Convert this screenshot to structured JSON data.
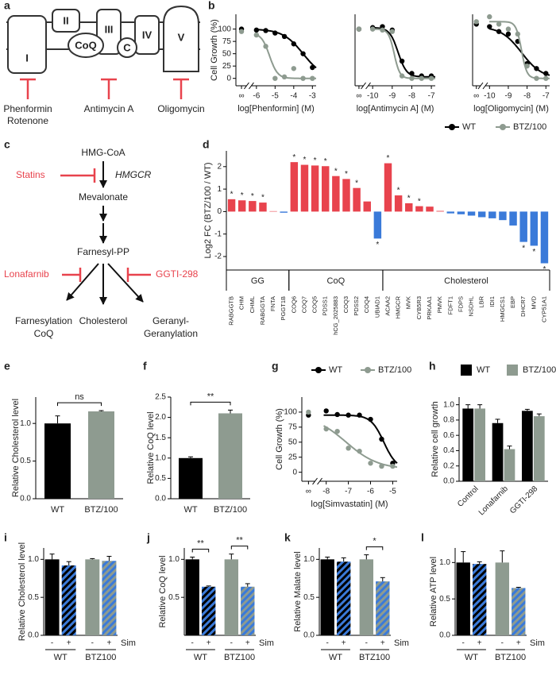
{
  "diagram_a": {
    "panel": "a",
    "complexes": [
      "I",
      "II",
      "CoQ",
      "III",
      "C",
      "IV",
      "V"
    ],
    "inhibitors": [
      {
        "lines": [
          "Phenformin",
          "Rotenone"
        ]
      },
      {
        "lines": [
          "Antimycin A"
        ]
      },
      {
        "lines": [
          "Oligomycin"
        ]
      }
    ]
  },
  "diagram_c": {
    "panel": "c",
    "nodes": [
      "HMG-CoA",
      "Mevalonate",
      "Farnesyl-PP"
    ],
    "enzyme": "HMGCR",
    "inhibitors": [
      "Statins",
      "Lonafarnib",
      "GGTI-298"
    ],
    "products": [
      {
        "lines": [
          "Farnesylation",
          "CoQ"
        ]
      },
      {
        "lines": [
          "Cholesterol"
        ]
      },
      {
        "lines": [
          "Geranyl-",
          "Geranylation"
        ]
      }
    ]
  },
  "chart_data": [
    {
      "type": "dose-response",
      "panel": "b",
      "ylabel": "Cell Growth (%)",
      "xlabel": "log[Phenformin] (M)",
      "xlim": [
        -7.1,
        -2.8
      ],
      "ylim": [
        -15,
        130
      ],
      "xticks": [
        {
          "value": -6.8,
          "label": "∞"
        },
        -6,
        -5,
        -4,
        -3
      ],
      "yticks": [
        0,
        25,
        50,
        75,
        100
      ],
      "series": [
        {
          "color": "#000000",
          "x": [
            -6.8,
            -6,
            -5.5,
            -5,
            -4.5,
            -4,
            -3.5,
            -3
          ],
          "values": [
            100,
            98,
            97,
            92,
            85,
            70,
            50,
            22
          ],
          "fit": {
            "top": 100,
            "bottom": 0,
            "log_ec50": -3.5,
            "hill": 0.8
          }
        },
        {
          "color": "#8e9b90",
          "x": [
            -6.8,
            -6,
            -5.5,
            -5,
            -4.5,
            -4,
            -3.5,
            -3
          ],
          "values": [
            95,
            88,
            65,
            0,
            3,
            20,
            0,
            0
          ],
          "fit": {
            "top": 92,
            "bottom": 0,
            "log_ec50": -5.3,
            "hill": 2
          }
        }
      ]
    },
    {
      "type": "dose-response",
      "xlabel": "log[Antimycin A] (M)",
      "xlim": [
        -10.9,
        -6.8
      ],
      "ylim": [
        -15,
        130
      ],
      "xticks": [
        {
          "value": -10.7,
          "label": "∞"
        },
        -10,
        -9,
        -8,
        -7
      ],
      "series": [
        {
          "color": "#000000",
          "x": [
            -10.7,
            -10,
            -9.5,
            -9,
            -8.5,
            -8,
            -7.5,
            -7
          ],
          "values": [
            100,
            103,
            105,
            98,
            35,
            10,
            5,
            5
          ],
          "fit": {
            "top": 103,
            "bottom": 3,
            "log_ec50": -8.7,
            "hill": 2
          }
        },
        {
          "color": "#8e9b90",
          "x": [
            -10.7,
            -10,
            -9.5,
            -9,
            -8.5,
            -8,
            -7.5,
            -7
          ],
          "values": [
            100,
            100,
            98,
            95,
            5,
            0,
            0,
            0
          ],
          "fit": {
            "top": 100,
            "bottom": 0,
            "log_ec50": -8.9,
            "hill": 3
          }
        }
      ]
    },
    {
      "type": "dose-response",
      "xlabel": "log[Oligomycin] (M)",
      "xlim": [
        -10.9,
        -6.8
      ],
      "ylim": [
        -15,
        130
      ],
      "xticks": [
        {
          "value": -10.7,
          "label": "∞"
        },
        -10,
        -9,
        -8,
        -7
      ],
      "series": [
        {
          "name": "WT",
          "color": "#000000",
          "x": [
            -10.7,
            -10,
            -9.5,
            -9,
            -8.5,
            -8,
            -7.5,
            -7
          ],
          "values": [
            110,
            105,
            95,
            90,
            75,
            30,
            20,
            10
          ],
          "fit": {
            "top": 105,
            "bottom": 0,
            "log_ec50": -8.3,
            "hill": 0.8
          }
        },
        {
          "name": "BTZ/100",
          "color": "#8e9b90",
          "x": [
            -10.7,
            -10,
            -9.5,
            -9,
            -8.5,
            -8,
            -7.5,
            -7
          ],
          "values": [
            115,
            125,
            110,
            100,
            90,
            25,
            0,
            0
          ],
          "fit": {
            "top": 115,
            "bottom": 0,
            "log_ec50": -8.3,
            "hill": 3
          }
        }
      ]
    },
    {
      "type": "bar",
      "panel": "d",
      "ylabel": "Log2 FC (BTZ/100 / WT)",
      "ylim": [
        -2.6,
        2.7
      ],
      "yticks": [
        -2,
        -1,
        0,
        1,
        2
      ],
      "positive_color": "#e8434d",
      "negative_color": "#3a7ad9",
      "groups": [
        {
          "label": "GG",
          "categories": [
            "RABGGTB",
            "CHM",
            "CHML",
            "RABGGTA",
            "FNTA",
            "PGGT1B"
          ],
          "values": [
            0.55,
            0.5,
            0.47,
            0.4,
            0.02,
            -0.05
          ],
          "significance": [
            "*",
            "*",
            "*",
            "*",
            null,
            null
          ]
        },
        {
          "label": "CoQ",
          "categories": [
            "COQ6",
            "COQ7",
            "COQ5",
            "PDSS1",
            "hCG_2025883",
            "COQ3",
            "PDSS2",
            "COQ4",
            "UBIAD1"
          ],
          "values": [
            2.2,
            2.08,
            2.05,
            2.02,
            1.58,
            1.45,
            1.05,
            0.45,
            -1.2
          ],
          "significance": [
            "*",
            "*",
            "*",
            "*",
            "*",
            "*",
            "*",
            null,
            "*"
          ]
        },
        {
          "label": "Cholesterol",
          "categories": [
            "ACAA2",
            "HMGCR",
            "MVK",
            "CYB5R3",
            "PRKAA1",
            "PMVK",
            "FDFT1",
            "FDPS",
            "NSDHL",
            "LBR",
            "IDI1",
            "HMGCS1",
            "EBP",
            "DHCR7",
            "MVD",
            "CYP51A1"
          ],
          "values": [
            2.15,
            0.72,
            0.37,
            0.24,
            0.22,
            0.03,
            -0.08,
            -0.12,
            -0.18,
            -0.25,
            -0.3,
            -0.38,
            -0.62,
            -1.35,
            -1.52,
            -2.3
          ],
          "significance": [
            "*",
            "*",
            "*",
            "*",
            null,
            null,
            null,
            null,
            null,
            null,
            null,
            null,
            null,
            "*",
            "*",
            "*"
          ]
        }
      ]
    },
    {
      "type": "bar",
      "panel": "e",
      "ylabel": "Relative Cholesterol level",
      "ylim": [
        0,
        1.35
      ],
      "yticks": [
        {
          "value": 0,
          "label": "0.0"
        },
        {
          "value": 0.5,
          "label": "0.5"
        },
        {
          "value": 1,
          "label": "1.0"
        }
      ],
      "categories": [
        "WT",
        "BTZ/100"
      ],
      "values": [
        1.0,
        1.16
      ],
      "errors": [
        0.1,
        0.01
      ],
      "colors": [
        "#000000",
        "#8e9b90"
      ],
      "bracket": "ns"
    },
    {
      "type": "bar",
      "panel": "f",
      "ylabel": "Relative CoQ level",
      "ylim": [
        0,
        2.5
      ],
      "yticks": [
        {
          "value": 0,
          "label": "0.0"
        },
        {
          "value": 0.5,
          "label": "0.5"
        },
        {
          "value": 1,
          "label": "1.0"
        },
        {
          "value": 1.5,
          "label": "1.5"
        },
        {
          "value": 2,
          "label": "2.0"
        },
        {
          "value": 2.5,
          "label": "2.5"
        }
      ],
      "categories": [
        "WT",
        "BTZ/100"
      ],
      "values": [
        1.0,
        2.1
      ],
      "errors": [
        0.03,
        0.08
      ],
      "colors": [
        "#000000",
        "#8e9b90"
      ],
      "bracket": "**"
    },
    {
      "type": "dose-response",
      "panel": "g",
      "ylabel": "Cell Growth (%)",
      "xlabel": "log[Simvastatin] (M)",
      "xlim": [
        -9.1,
        -4.8
      ],
      "ylim": [
        -15,
        125
      ],
      "xticks": [
        {
          "value": -8.8,
          "label": "∞"
        },
        -8,
        -7,
        -6,
        -5
      ],
      "yticks": [
        0,
        25,
        50,
        75,
        100
      ],
      "series": [
        {
          "name": "WT",
          "color": "#000000",
          "x": [
            -8.8,
            -8,
            -7.5,
            -7,
            -6.5,
            -6,
            -5.5,
            -5
          ],
          "values": [
            95,
            102,
            96,
            95,
            95,
            88,
            55,
            15
          ],
          "fit": {
            "top": 95,
            "bottom": 5,
            "log_ec50": -5.4,
            "hill": 1.5
          }
        },
        {
          "name": "BTZ/100",
          "color": "#8e9b90",
          "x": [
            -8.8,
            -8,
            -7.5,
            -7,
            -6.5,
            -6,
            -5.5,
            -5
          ],
          "values": [
            100,
            72,
            68,
            40,
            35,
            15,
            10,
            10
          ],
          "fit": {
            "top": 95,
            "bottom": 5,
            "log_ec50": -7.1,
            "hill": 0.6
          }
        }
      ]
    },
    {
      "type": "bar",
      "panel": "h",
      "ylabel": "Relative cell growth",
      "ylim": [
        0,
        1.1
      ],
      "yticks": [
        {
          "value": 0,
          "label": "0.0"
        },
        {
          "value": 0.2,
          "label": "0.2"
        },
        {
          "value": 0.4,
          "label": "0.4"
        },
        {
          "value": 0.6,
          "label": "0.6"
        },
        {
          "value": 0.8,
          "label": "0.8"
        },
        {
          "value": 1,
          "label": "1.0"
        }
      ],
      "categories": [
        "Control",
        "Lonafarnib",
        "GGTI-298"
      ],
      "series": [
        {
          "name": "WT",
          "color": "#000000",
          "values": [
            0.95,
            0.76,
            0.92
          ],
          "errors": [
            0.05,
            0.05,
            0.02
          ]
        },
        {
          "name": "BTZ/100",
          "color": "#8e9b90",
          "values": [
            0.95,
            0.42,
            0.85
          ],
          "errors": [
            0.05,
            0.04,
            0.03
          ]
        }
      ]
    },
    {
      "type": "bar",
      "panel": "i",
      "ylabel": "Relative Cholesterol level",
      "ylim": [
        0,
        1.15
      ],
      "yticks": [
        {
          "value": 0,
          "label": "0.0"
        },
        {
          "value": 0.5,
          "label": "0.5"
        },
        {
          "value": 1,
          "label": "1.0"
        }
      ],
      "stripe_color": "#3a7ad9",
      "x_note": "Sim",
      "groups": [
        {
          "label": "WT",
          "color": "#000000",
          "categories": [
            "-",
            "+"
          ],
          "fills": [
            "solid",
            "striped"
          ],
          "values": [
            1.0,
            0.92
          ],
          "errors": [
            0.07,
            0.05
          ]
        },
        {
          "label": "BTZ100",
          "color": "#8e9b90",
          "categories": [
            "-",
            "+"
          ],
          "fills": [
            "solid",
            "striped"
          ],
          "values": [
            1.0,
            0.98
          ],
          "errors": [
            0.01,
            0.06
          ]
        }
      ]
    },
    {
      "type": "bar",
      "panel": "j",
      "ylabel": "Relative CoQ level",
      "ylim": [
        0,
        1.15
      ],
      "yticks": [
        {
          "value": 0.5,
          "label": "0.5"
        },
        {
          "value": 1,
          "label": "1.0"
        }
      ],
      "stripe_color": "#3a7ad9",
      "x_note": "Sim",
      "groups": [
        {
          "label": "WT",
          "color": "#000000",
          "categories": [
            "-",
            "+"
          ],
          "fills": [
            "solid",
            "striped"
          ],
          "values": [
            1.0,
            0.64
          ],
          "errors": [
            0.03,
            0.01
          ],
          "bracket": "**"
        },
        {
          "label": "BTZ100",
          "color": "#8e9b90",
          "categories": [
            "-",
            "+"
          ],
          "fills": [
            "solid",
            "striped"
          ],
          "values": [
            1.0,
            0.64
          ],
          "errors": [
            0.07,
            0.04
          ],
          "bracket": "**"
        }
      ]
    },
    {
      "type": "bar",
      "panel": "k",
      "ylabel": "Relative Malate level",
      "ylim": [
        0,
        1.15
      ],
      "yticks": [
        {
          "value": 0,
          "label": "0.0"
        },
        {
          "value": 0.5,
          "label": "0.5"
        },
        {
          "value": 1,
          "label": "1.0"
        }
      ],
      "stripe_color": "#3a7ad9",
      "x_note": "Sim",
      "groups": [
        {
          "label": "WT",
          "color": "#000000",
          "categories": [
            "-",
            "+"
          ],
          "fills": [
            "solid",
            "striped"
          ],
          "values": [
            1.0,
            0.97
          ],
          "errors": [
            0.03,
            0.05
          ]
        },
        {
          "label": "BTZ100",
          "color": "#8e9b90",
          "categories": [
            "-",
            "+"
          ],
          "fills": [
            "solid",
            "striped"
          ],
          "values": [
            1.0,
            0.71
          ],
          "errors": [
            0.06,
            0.05
          ],
          "bracket": "*"
        }
      ]
    },
    {
      "type": "bar",
      "panel": "l",
      "ylabel": "Relative ATP level",
      "ylim": [
        0,
        1.2
      ],
      "yticks": [
        {
          "value": 0,
          "label": "0.0"
        },
        {
          "value": 0.5,
          "label": "0.5"
        },
        {
          "value": 1,
          "label": "1.0"
        }
      ],
      "stripe_color": "#3a7ad9",
      "x_note": "Sim",
      "groups": [
        {
          "label": "WT",
          "color": "#000000",
          "categories": [
            "-",
            "+"
          ],
          "fills": [
            "solid",
            "striped"
          ],
          "values": [
            1.0,
            0.98
          ],
          "errors": [
            0.15,
            0.03
          ]
        },
        {
          "label": "BTZ100",
          "color": "#8e9b90",
          "categories": [
            "-",
            "+"
          ],
          "fills": [
            "solid",
            "striped"
          ],
          "values": [
            1.0,
            0.65
          ],
          "errors": [
            0.16,
            0.01
          ]
        }
      ]
    }
  ]
}
